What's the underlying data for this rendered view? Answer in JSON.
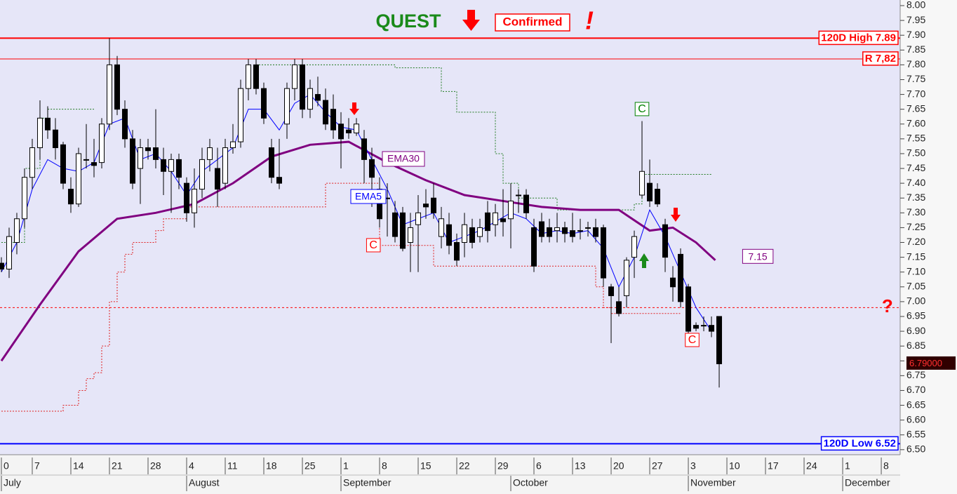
{
  "chart_data": {
    "type": "candlestick",
    "title": "QUEST",
    "status": "Confirmed",
    "alert": "!",
    "xlim": [
      -0.18,
      116.45
    ],
    "ylim": [
      6.483,
      8.019
    ],
    "yticks": [
      {
        "value": 6.5,
        "label": "6.50"
      },
      {
        "value": 6.55,
        "label": "6.55"
      },
      {
        "value": 6.6,
        "label": "6.60"
      },
      {
        "value": 6.65,
        "label": "6.65"
      },
      {
        "value": 6.7,
        "label": "6.70"
      },
      {
        "value": 6.75,
        "label": "6.75"
      },
      {
        "value": 6.8,
        "label": "6.80"
      },
      {
        "value": 6.85,
        "label": "6.85"
      },
      {
        "value": 6.9,
        "label": "6.90"
      },
      {
        "value": 6.95,
        "label": "6.95"
      },
      {
        "value": 7.0,
        "label": "7.00"
      },
      {
        "value": 7.05,
        "label": "7.05"
      },
      {
        "value": 7.1,
        "label": "7.10"
      },
      {
        "value": 7.15,
        "label": "7.15"
      },
      {
        "value": 7.2,
        "label": "7.20"
      },
      {
        "value": 7.25,
        "label": "7.25"
      },
      {
        "value": 7.3,
        "label": "7.30"
      },
      {
        "value": 7.35,
        "label": "7.35"
      },
      {
        "value": 7.4,
        "label": "7.40"
      },
      {
        "value": 7.45,
        "label": "7.45"
      },
      {
        "value": 7.5,
        "label": "7.50"
      },
      {
        "value": 7.55,
        "label": "7.55"
      },
      {
        "value": 7.6,
        "label": "7.60"
      },
      {
        "value": 7.65,
        "label": "7.65"
      },
      {
        "value": 7.7,
        "label": "7.70"
      },
      {
        "value": 7.75,
        "label": "7.75"
      },
      {
        "value": 7.8,
        "label": "7.80"
      },
      {
        "value": 7.85,
        "label": "7.85"
      },
      {
        "value": 7.9,
        "label": "7.90"
      },
      {
        "value": 7.95,
        "label": "7.95"
      },
      {
        "value": 8.0,
        "label": "8.00"
      }
    ],
    "xticks": [
      0,
      {
        "value": 4,
        "label": "7"
      },
      {
        "value": 9,
        "label": "14"
      },
      {
        "value": 14,
        "label": "21"
      },
      {
        "value": 19,
        "label": "28"
      },
      {
        "value": 24,
        "label": "4"
      },
      {
        "value": 29,
        "label": "11"
      },
      {
        "value": 34,
        "label": "18"
      },
      {
        "value": 39,
        "label": "25"
      },
      {
        "value": 44,
        "label": "1"
      },
      {
        "value": 49,
        "label": "8"
      },
      {
        "value": 54,
        "label": "15"
      },
      {
        "value": 59,
        "label": "22"
      },
      {
        "value": 64,
        "label": "29"
      },
      {
        "value": 69,
        "label": "6"
      },
      {
        "value": 74,
        "label": "13"
      },
      {
        "value": 79,
        "label": "20"
      },
      {
        "value": 84,
        "label": "27"
      },
      {
        "value": 89,
        "label": "3"
      },
      {
        "value": 94,
        "label": "10"
      },
      {
        "value": 99,
        "label": "17"
      },
      {
        "value": 104,
        "label": "24"
      },
      {
        "value": 109,
        "label": "1"
      },
      {
        "value": 114,
        "label": "8"
      }
    ],
    "months": [
      {
        "value": 0,
        "label": "July"
      },
      {
        "value": 24,
        "label": "August"
      },
      {
        "value": 44,
        "label": "September"
      },
      {
        "value": 66,
        "label": "October"
      },
      {
        "value": 89,
        "label": "November"
      },
      {
        "value": 109,
        "label": "December"
      }
    ],
    "candles": {
      "x": [
        0,
        1,
        2,
        3,
        4,
        5,
        6,
        7,
        8,
        9,
        10,
        11,
        12,
        13,
        14,
        15,
        16,
        17,
        18,
        19,
        20,
        21,
        22,
        23,
        24,
        25,
        26,
        27,
        28,
        29,
        30,
        31,
        32,
        33,
        34,
        35,
        36,
        37,
        38,
        39,
        40,
        41,
        42,
        43,
        44,
        45,
        46,
        47,
        48,
        49,
        50,
        51,
        52,
        53,
        54,
        55,
        56,
        57,
        58,
        59,
        60,
        61,
        62,
        63,
        64,
        65,
        66,
        67,
        68,
        69,
        70,
        71,
        72,
        73,
        74,
        75,
        76,
        77,
        78,
        79,
        80,
        81,
        82,
        83,
        84,
        85,
        86,
        87,
        88,
        89,
        90,
        91,
        92,
        93
      ],
      "open": [
        7.13,
        7.11,
        7.2,
        7.28,
        7.42,
        7.52,
        7.62,
        7.58,
        7.53,
        7.38,
        7.33,
        7.48,
        7.47,
        7.47,
        7.6,
        7.8,
        7.65,
        7.55,
        7.45,
        7.52,
        7.52,
        7.48,
        7.44,
        7.48,
        7.4,
        7.3,
        7.38,
        7.48,
        7.45,
        7.4,
        7.52,
        7.54,
        7.72,
        7.8,
        7.72,
        7.52,
        7.42,
        7.6,
        7.72,
        7.8,
        7.65,
        7.7,
        7.68,
        7.65,
        7.6,
        7.58,
        7.57,
        7.55,
        7.48,
        7.38,
        7.35,
        7.3,
        7.3,
        7.2,
        7.26,
        7.33,
        7.35,
        7.22,
        7.26,
        7.2,
        7.2,
        7.25,
        7.22,
        7.3,
        7.26,
        7.28,
        7.28,
        7.36,
        7.36,
        7.25,
        7.27,
        7.25,
        7.24,
        7.25,
        7.24,
        7.24,
        7.25,
        7.25,
        7.25,
        7.05,
        7.0,
        7.02,
        7.15,
        7.36,
        7.4,
        7.38,
        7.26,
        7.08,
        7.16,
        7.05,
        6.92,
        6.92,
        6.92,
        6.95
      ],
      "high": [
        7.15,
        7.25,
        7.3,
        7.45,
        7.55,
        7.68,
        7.66,
        7.62,
        7.54,
        7.42,
        7.52,
        7.6,
        7.55,
        7.62,
        7.89,
        7.83,
        7.68,
        7.58,
        7.55,
        7.55,
        7.65,
        7.52,
        7.5,
        7.5,
        7.42,
        7.45,
        7.52,
        7.55,
        7.52,
        7.55,
        7.6,
        7.75,
        7.82,
        7.82,
        7.74,
        7.55,
        7.55,
        7.74,
        7.82,
        7.82,
        7.75,
        7.76,
        7.72,
        7.7,
        7.64,
        7.62,
        7.62,
        7.58,
        7.52,
        7.42,
        7.4,
        7.34,
        7.32,
        7.3,
        7.36,
        7.38,
        7.4,
        7.32,
        7.3,
        7.23,
        7.3,
        7.28,
        7.28,
        7.34,
        7.33,
        7.38,
        7.4,
        7.38,
        7.38,
        7.28,
        7.3,
        7.28,
        7.3,
        7.27,
        7.3,
        7.28,
        7.27,
        7.28,
        7.26,
        7.06,
        7.05,
        7.15,
        7.24,
        7.61,
        7.48,
        7.4,
        7.28,
        7.12,
        7.18,
        7.06,
        6.93,
        6.95,
        6.95,
        6.95
      ],
      "low": [
        7.1,
        7.08,
        7.16,
        7.25,
        7.38,
        7.48,
        7.55,
        7.48,
        7.38,
        7.3,
        7.32,
        7.45,
        7.42,
        7.45,
        7.58,
        7.63,
        7.52,
        7.38,
        7.33,
        7.48,
        7.45,
        7.36,
        7.3,
        7.38,
        7.27,
        7.25,
        7.35,
        7.44,
        7.32,
        7.38,
        7.5,
        7.52,
        7.68,
        7.7,
        7.6,
        7.4,
        7.38,
        7.55,
        7.68,
        7.62,
        7.62,
        7.66,
        7.58,
        7.55,
        7.45,
        7.55,
        7.56,
        7.4,
        7.32,
        7.25,
        7.22,
        7.2,
        7.17,
        7.1,
        7.1,
        7.28,
        7.28,
        7.18,
        7.16,
        7.12,
        7.15,
        7.18,
        7.2,
        7.2,
        7.22,
        7.22,
        7.18,
        7.3,
        7.28,
        7.1,
        7.2,
        7.2,
        7.2,
        7.2,
        7.2,
        7.21,
        7.22,
        7.2,
        7.05,
        6.86,
        6.95,
        6.98,
        7.08,
        7.35,
        7.32,
        7.32,
        7.1,
        7.0,
        6.98,
        6.89,
        6.9,
        6.9,
        6.88,
        6.71
      ],
      "close": [
        7.11,
        7.22,
        7.28,
        7.42,
        7.52,
        7.62,
        7.58,
        7.52,
        7.4,
        7.33,
        7.5,
        7.48,
        7.46,
        7.6,
        7.8,
        7.65,
        7.55,
        7.4,
        7.52,
        7.51,
        7.48,
        7.44,
        7.48,
        7.42,
        7.3,
        7.38,
        7.48,
        7.52,
        7.38,
        7.52,
        7.54,
        7.72,
        7.8,
        7.72,
        7.62,
        7.42,
        7.4,
        7.72,
        7.8,
        7.65,
        7.72,
        7.68,
        7.6,
        7.58,
        7.55,
        7.57,
        7.6,
        7.48,
        7.42,
        7.28,
        7.35,
        7.22,
        7.18,
        7.25,
        7.3,
        7.32,
        7.3,
        7.28,
        7.19,
        7.14,
        7.26,
        7.2,
        7.25,
        7.24,
        7.3,
        7.27,
        7.34,
        7.36,
        7.3,
        7.12,
        7.22,
        7.22,
        7.25,
        7.23,
        7.22,
        7.24,
        7.25,
        7.22,
        7.08,
        7.02,
        6.96,
        7.14,
        7.22,
        7.44,
        7.34,
        7.33,
        7.15,
        7.05,
        7.0,
        6.9,
        6.91,
        6.92,
        6.9,
        6.79
      ]
    },
    "lines": [
      {
        "name": "EMA30",
        "color": "#800080",
        "width": 3,
        "x": [
          0,
          5,
          10,
          15,
          20,
          25,
          30,
          35,
          40,
          45,
          50,
          55,
          60,
          65,
          70,
          75,
          80,
          84,
          87,
          90,
          92.5
        ],
        "values": [
          6.8,
          6.99,
          7.17,
          7.28,
          7.3,
          7.33,
          7.4,
          7.49,
          7.53,
          7.54,
          7.47,
          7.41,
          7.36,
          7.34,
          7.32,
          7.31,
          7.31,
          7.24,
          7.25,
          7.2,
          7.14
        ]
      },
      {
        "name": "EMA5",
        "color": "#0000ff",
        "width": 1,
        "x": [
          0,
          2,
          4,
          6,
          8,
          10,
          12,
          14,
          16,
          18,
          20,
          22,
          24,
          26,
          28,
          30,
          32,
          34,
          36,
          38,
          40,
          42,
          44,
          46,
          48,
          50,
          52,
          54,
          56,
          58,
          60,
          62,
          64,
          66,
          68,
          70,
          72,
          74,
          76,
          78,
          80,
          82,
          84,
          86,
          88,
          90,
          92
        ],
        "values": [
          7.1,
          7.2,
          7.38,
          7.48,
          7.45,
          7.44,
          7.47,
          7.6,
          7.62,
          7.48,
          7.5,
          7.44,
          7.36,
          7.44,
          7.48,
          7.52,
          7.65,
          7.65,
          7.58,
          7.67,
          7.7,
          7.64,
          7.59,
          7.58,
          7.48,
          7.38,
          7.26,
          7.28,
          7.3,
          7.2,
          7.22,
          7.24,
          7.27,
          7.3,
          7.28,
          7.23,
          7.24,
          7.23,
          7.24,
          7.18,
          7.05,
          7.15,
          7.31,
          7.22,
          7.1,
          6.98,
          6.9
        ]
      }
    ],
    "stops": [
      {
        "color": "#1f7a1f",
        "x": [
          0,
          3,
          5,
          6,
          12,
          13,
          33,
          51,
          57,
          59,
          64,
          65,
          67,
          72,
          82,
          83,
          92
        ],
        "values": [
          7.2,
          7.45,
          7.62,
          7.65,
          7.65,
          null,
          7.8,
          7.79,
          7.71,
          7.64,
          7.5,
          7.4,
          7.35,
          7.31,
          7.33,
          7.43,
          7.43
        ]
      },
      {
        "color": "#e02020",
        "x": [
          0,
          8,
          10,
          11,
          12,
          13,
          14,
          15,
          16,
          17,
          20,
          21,
          24,
          42,
          49,
          56,
          77,
          78,
          79,
          88
        ],
        "values": [
          6.63,
          6.65,
          6.7,
          6.74,
          6.76,
          6.85,
          7.0,
          7.1,
          7.16,
          7.2,
          7.24,
          7.28,
          7.32,
          7.4,
          7.19,
          7.12,
          7.05,
          6.98,
          6.96,
          6.96
        ]
      }
    ],
    "levels": [
      {
        "label": "120D High 7.89",
        "value": 7.89,
        "color": "#ff0000",
        "width": 2
      },
      {
        "label": "R 7,82",
        "value": 7.82,
        "color": "#ff0000",
        "width": 1
      },
      {
        "label": "120D Low 6.52",
        "value": 6.52,
        "color": "#0000ff",
        "width": 2
      },
      {
        "value": 6.98,
        "color": "#ff0000",
        "width": 1,
        "dashed": true
      }
    ],
    "last_price": {
      "value": 6.79,
      "label": "6.79000"
    },
    "ema30_last": {
      "value": 7.15,
      "x": 98
    },
    "annotations": [
      {
        "text": "C",
        "x": 83,
        "y": 7.65,
        "color": "#008000"
      },
      {
        "text": "C",
        "x": 48.2,
        "y": 7.19,
        "color": "#ff0000"
      },
      {
        "text": "C",
        "x": 89.5,
        "y": 6.87,
        "color": "#ff0000"
      },
      {
        "text": "?",
        "x": 114.8,
        "y": 6.98,
        "color": "#ff0000"
      }
    ]
  }
}
